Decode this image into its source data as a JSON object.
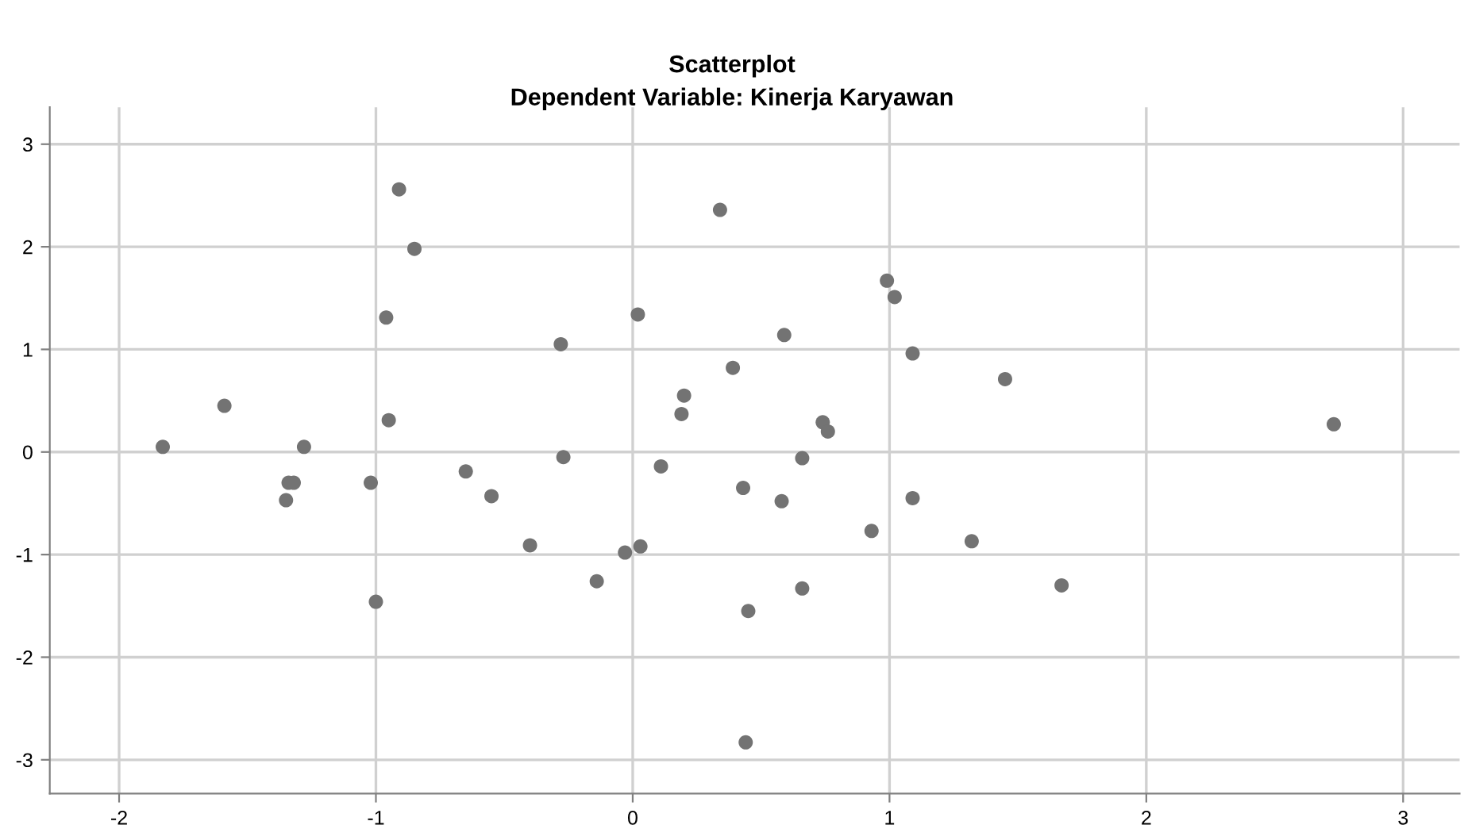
{
  "chart_data": {
    "type": "scatter",
    "title": "Scatterplot",
    "subtitle": "Dependent Variable: Kinerja Karyawan",
    "x": [
      -0.91,
      -0.85,
      -0.96,
      -1.59,
      -1.83,
      -1.28,
      -0.95,
      -1.34,
      -1.32,
      -1.35,
      -1.02,
      -0.65,
      -0.55,
      -1.0,
      0.34,
      0.99,
      1.02,
      0.02,
      -0.28,
      0.59,
      1.09,
      0.39,
      0.2,
      0.19,
      0.74,
      0.76,
      -0.27,
      0.66,
      0.11,
      0.43,
      0.58,
      1.09,
      0.93,
      1.32,
      -0.4,
      -0.03,
      0.03,
      -0.14,
      0.66,
      0.45,
      0.44,
      1.45,
      2.73,
      1.67
    ],
    "values": [
      2.56,
      1.98,
      1.31,
      0.45,
      0.05,
      0.05,
      0.31,
      -0.3,
      -0.3,
      -0.47,
      -0.3,
      -0.19,
      -0.43,
      -1.46,
      2.36,
      1.67,
      1.51,
      1.34,
      1.05,
      1.14,
      0.96,
      0.82,
      0.55,
      0.37,
      0.29,
      0.2,
      -0.05,
      -0.06,
      -0.14,
      -0.35,
      -0.48,
      -0.45,
      -0.77,
      -0.87,
      -0.91,
      -0.98,
      -0.92,
      -1.26,
      -1.33,
      -1.55,
      -2.83,
      0.71,
      0.27,
      -1.3
    ],
    "color": "#737373",
    "marker": "circle",
    "xlim": [
      -2.27,
      3.22
    ],
    "ylim": [
      -3.33,
      3.36
    ],
    "xticks": [
      -2,
      -1,
      0,
      1,
      2,
      3
    ],
    "yticks": [
      -3,
      -2,
      -1,
      0,
      1,
      2,
      3
    ],
    "grid": true
  }
}
